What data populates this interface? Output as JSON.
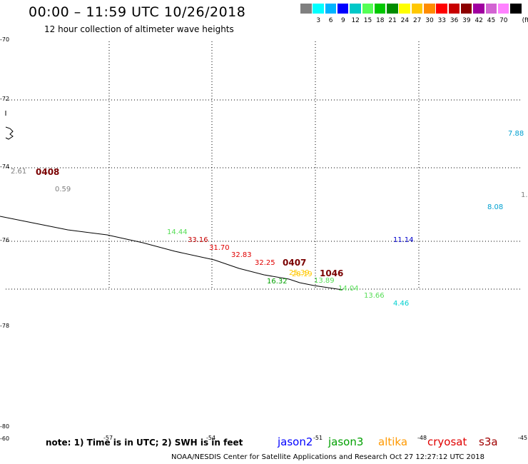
{
  "header": {
    "title": "00:00 – 11:59 UTC 10/26/2018",
    "subtitle": "12 hour collection of altimeter wave heights"
  },
  "legend": {
    "unit": "(ft)",
    "items": [
      {
        "label": "",
        "color": "#808080"
      },
      {
        "label": "3",
        "color": "#00ffff"
      },
      {
        "label": "6",
        "color": "#00b4ff"
      },
      {
        "label": "9",
        "color": "#0000ff"
      },
      {
        "label": "12",
        "color": "#00c8c8"
      },
      {
        "label": "15",
        "color": "#55ff55"
      },
      {
        "label": "18",
        "color": "#00c800"
      },
      {
        "label": "21",
        "color": "#008c00"
      },
      {
        "label": "24",
        "color": "#ffff00"
      },
      {
        "label": "27",
        "color": "#ffc800"
      },
      {
        "label": "30",
        "color": "#ff8c00"
      },
      {
        "label": "33",
        "color": "#ff0000"
      },
      {
        "label": "36",
        "color": "#c80000"
      },
      {
        "label": "39",
        "color": "#8c0000"
      },
      {
        "label": "42",
        "color": "#a000a0"
      },
      {
        "label": "45",
        "color": "#d264d2"
      },
      {
        "label": "70",
        "color": "#ff82ff"
      },
      {
        "label": "",
        "color": "#000000"
      }
    ]
  },
  "map": {
    "lat_labels": [
      "-70",
      "-72",
      "-74",
      "-76",
      "-78",
      "-80",
      "-60"
    ],
    "lon_labels": [
      "-57",
      "-54",
      "-51",
      "-48",
      "-45"
    ],
    "pass_times": [
      "0408",
      "0407",
      "1046"
    ],
    "wave_labels": [
      {
        "text": "2.61",
        "color": "#808080"
      },
      {
        "text": "0.59",
        "color": "#808080"
      },
      {
        "text": "7.88",
        "color": "#00a0d0"
      },
      {
        "text": "1.",
        "color": "#808080"
      },
      {
        "text": "8.08",
        "color": "#00a0d0"
      },
      {
        "text": "14.44",
        "color": "#55dd55"
      },
      {
        "text": "33.16",
        "color": "#c80000"
      },
      {
        "text": "31.70",
        "color": "#e00000"
      },
      {
        "text": "32.83",
        "color": "#e00000"
      },
      {
        "text": "32.25",
        "color": "#e00000"
      },
      {
        "text": "11.14",
        "color": "#0000cc"
      },
      {
        "text": "25.39",
        "color": "#ffc800"
      },
      {
        "text": "28.19",
        "color": "#ffc800"
      },
      {
        "text": "16.32",
        "color": "#00a000"
      },
      {
        "text": "13.89",
        "color": "#55dd55"
      },
      {
        "text": "14.04",
        "color": "#55dd55"
      },
      {
        "text": "13.66",
        "color": "#55dd55"
      },
      {
        "text": "4.46",
        "color": "#00d0d0"
      }
    ]
  },
  "footer": {
    "note": "note: 1) Time is in UTC; 2) SWH is in feet",
    "satellites": [
      {
        "name": "jason2",
        "color": "#0000ff"
      },
      {
        "name": "jason3",
        "color": "#00a000"
      },
      {
        "name": "altika",
        "color": "#ff9900"
      },
      {
        "name": "cryosat",
        "color": "#e00000"
      },
      {
        "name": "s3a",
        "color": "#a00000"
      }
    ],
    "credit": "NOAA/NESDIS Center for Satellite Applications and Research    Oct 27 12:27:12 UTC 2018"
  }
}
